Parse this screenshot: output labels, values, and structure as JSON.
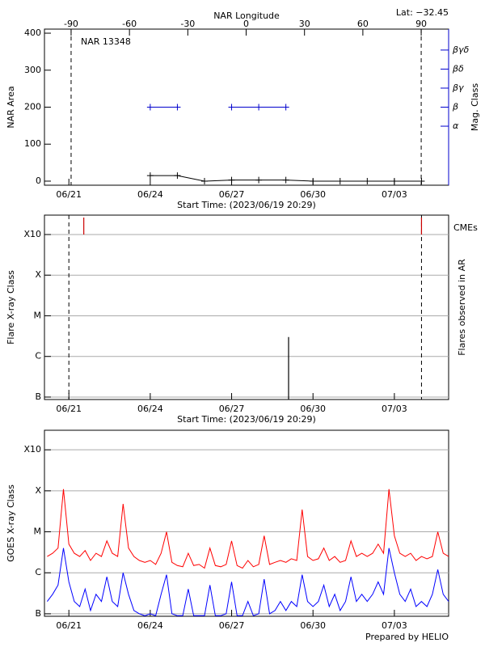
{
  "chart_data": [
    {
      "type": "line",
      "title": "NAR 13348",
      "subtitle": "Lat: −32.45",
      "x2label": "NAR Longitude",
      "xlabel": "Start Time: (2023/06/19 20:29)",
      "ylabel": "NAR Area",
      "y2label": "Mag. Class",
      "xlim": [
        20.1,
        35.0
      ],
      "xticks": [
        {
          "value": 21,
          "label": "06/21"
        },
        {
          "value": 24,
          "label": "06/24"
        },
        {
          "value": 27,
          "label": "06/27"
        },
        {
          "value": 30,
          "label": "06/30"
        },
        {
          "value": 33,
          "label": "07/03"
        }
      ],
      "x2lim": [
        -103.7,
        104.1
      ],
      "x2ticks": [
        -90,
        -60,
        -30,
        0,
        30,
        60,
        90
      ],
      "dashed_x2": [
        -90,
        90
      ],
      "ylim": [
        -11,
        411
      ],
      "yticks": [
        0,
        100,
        200,
        300,
        400
      ],
      "y2lim": [
        -0.1,
        8.1
      ],
      "y2ticks": [
        {
          "value": 3,
          "label": "α"
        },
        {
          "value": 4,
          "label": "β"
        },
        {
          "value": 5,
          "label": "βγ"
        },
        {
          "value": 6,
          "label": "βδ"
        },
        {
          "value": 7,
          "label": "βγδ"
        }
      ],
      "series": [
        {
          "color": "#000000",
          "x": [
            24,
            25,
            26,
            27,
            28,
            29,
            30,
            31,
            32,
            33,
            34
          ],
          "values": [
            15,
            15,
            0,
            3,
            3,
            3,
            0,
            0,
            0,
            0,
            0
          ]
        },
        {
          "color": "#0000cc",
          "axis": "y2",
          "x": [
            24,
            25,
            26,
            27,
            28,
            29
          ],
          "values": [
            4,
            4,
            null,
            4,
            4,
            4
          ]
        }
      ]
    },
    {
      "type": "bar",
      "xlabel": "Start Time: (2023/06/19 20:29)",
      "ylabel": "Flare X-ray Class",
      "y2label": "Flares observed in AR",
      "log_y": true,
      "grid": true,
      "xlim": [
        20.1,
        35.0
      ],
      "xticks": [
        {
          "value": 21,
          "label": "06/21"
        },
        {
          "value": 24,
          "label": "06/24"
        },
        {
          "value": 27,
          "label": "06/27"
        },
        {
          "value": 30,
          "label": "06/30"
        },
        {
          "value": 33,
          "label": "07/03"
        }
      ],
      "dashed_x": [
        21.0,
        34.0
      ],
      "ylim": [
        8.7e-08,
        0.003
      ],
      "yticks": [
        {
          "value": 1e-07,
          "label": "B"
        },
        {
          "value": 1e-06,
          "label": "C"
        },
        {
          "value": 1e-05,
          "label": "M"
        },
        {
          "value": 0.0001,
          "label": "X"
        },
        {
          "value": 0.001,
          "label": "X10"
        }
      ],
      "series": [
        {
          "color": "#000000",
          "x": [
            29.1
          ],
          "values": [
            3e-06
          ]
        },
        {
          "name": "CMEs",
          "color": "#cc0000",
          "x": [
            21.55,
            34.0
          ],
          "values": [
            0.001,
            0.001
          ]
        }
      ]
    },
    {
      "type": "line",
      "ylabel": "GOES X-ray Class",
      "log_y": true,
      "grid": true,
      "xlim": [
        20.1,
        35.0
      ],
      "xticks": [
        {
          "value": 21,
          "label": "06/21"
        },
        {
          "value": 24,
          "label": "06/24"
        },
        {
          "value": 27,
          "label": "06/27"
        },
        {
          "value": 30,
          "label": "06/30"
        },
        {
          "value": 33,
          "label": "07/03"
        }
      ],
      "ylim": [
        8.7e-08,
        0.003
      ],
      "yticks": [
        {
          "value": 1e-07,
          "label": "B"
        },
        {
          "value": 1e-06,
          "label": "C"
        },
        {
          "value": 1e-05,
          "label": "M"
        },
        {
          "value": 0.0001,
          "label": "X"
        },
        {
          "value": 0.001,
          "label": "X10"
        }
      ],
      "x": [
        20.2,
        20.4,
        20.6,
        20.8,
        21,
        21.2,
        21.4,
        21.6,
        21.8,
        22,
        22.2,
        22.4,
        22.6,
        22.8,
        23,
        23.2,
        23.4,
        23.6,
        23.8,
        24,
        24.2,
        24.4,
        24.6,
        24.8,
        25,
        25.2,
        25.4,
        25.6,
        25.8,
        26,
        26.2,
        26.4,
        26.6,
        26.8,
        27,
        27.2,
        27.4,
        27.6,
        27.8,
        28,
        28.2,
        28.4,
        28.6,
        28.8,
        29,
        29.2,
        29.4,
        29.6,
        29.8,
        30,
        30.2,
        30.4,
        30.6,
        30.8,
        31,
        31.2,
        31.4,
        31.6,
        31.8,
        32,
        32.2,
        32.4,
        32.6,
        32.8,
        33,
        33.2,
        33.4,
        33.6,
        33.8,
        34,
        34.2,
        34.4,
        34.6,
        34.8,
        35
      ],
      "series": [
        {
          "color": "#ff0000",
          "values": [
            2.5e-06,
            3e-06,
            4e-06,
            0.00011,
            5e-06,
            3e-06,
            2.5e-06,
            3.5e-06,
            2e-06,
            3e-06,
            2.5e-06,
            6e-06,
            3e-06,
            2.5e-06,
            4.8e-05,
            4e-06,
            2.5e-06,
            2e-06,
            1.8e-06,
            2e-06,
            1.6e-06,
            3e-06,
            1e-05,
            1.8e-06,
            1.5e-06,
            1.4e-06,
            3e-06,
            1.5e-06,
            1.6e-06,
            1.3e-06,
            4e-06,
            1.5e-06,
            1.4e-06,
            1.6e-06,
            6e-06,
            1.5e-06,
            1.3e-06,
            2e-06,
            1.4e-06,
            1.6e-06,
            8e-06,
            1.6e-06,
            1.8e-06,
            2e-06,
            1.8e-06,
            2.2e-06,
            2e-06,
            3.5e-05,
            2.5e-06,
            2e-06,
            2.2e-06,
            4e-06,
            2e-06,
            2.5e-06,
            1.8e-06,
            2e-06,
            6e-06,
            2.5e-06,
            3e-06,
            2.5e-06,
            3e-06,
            5e-06,
            3e-06,
            0.00011,
            8e-06,
            3e-06,
            2.5e-06,
            3e-06,
            2e-06,
            2.5e-06,
            2.2e-06,
            2.5e-06,
            1e-05,
            3e-06,
            2.5e-06
          ]
        },
        {
          "color": "#0000ff",
          "values": [
            2e-07,
            3e-07,
            5e-07,
            4e-06,
            6e-07,
            2e-07,
            1.5e-07,
            4e-07,
            1.2e-07,
            3e-07,
            2e-07,
            8e-07,
            2e-07,
            1.5e-07,
            1e-06,
            3e-07,
            1.2e-07,
            1e-07,
            9e-08,
            1e-07,
            9e-08,
            3e-07,
            9e-07,
            1e-07,
            9e-08,
            9e-08,
            4e-07,
            9e-08,
            9e-08,
            9e-08,
            5e-07,
            9e-08,
            9e-08,
            1e-07,
            6e-07,
            9e-08,
            9e-08,
            2e-07,
            9e-08,
            1e-07,
            7e-07,
            1e-07,
            1.2e-07,
            2e-07,
            1.2e-07,
            2e-07,
            1.5e-07,
            9e-07,
            2e-07,
            1.5e-07,
            2e-07,
            5e-07,
            1.5e-07,
            3e-07,
            1.2e-07,
            2e-07,
            8e-07,
            2e-07,
            3e-07,
            2e-07,
            3e-07,
            6e-07,
            3e-07,
            4e-06,
            1e-06,
            3e-07,
            2e-07,
            4e-07,
            1.5e-07,
            2e-07,
            1.5e-07,
            3e-07,
            1.2e-06,
            3e-07,
            2e-07
          ]
        }
      ]
    }
  ],
  "footer": "Prepared by HELIO"
}
